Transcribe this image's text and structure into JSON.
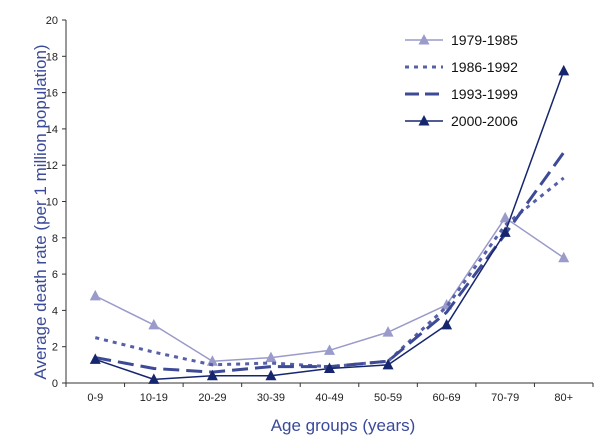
{
  "chart_data": {
    "type": "line",
    "title": "",
    "xlabel": "Age groups (years)",
    "ylabel": "Average death rate  (per 1 million population)",
    "categories": [
      "0-9",
      "10-19",
      "20-29",
      "30-39",
      "40-49",
      "50-59",
      "60-69",
      "70-79",
      "80+"
    ],
    "ylim": [
      0,
      20
    ],
    "yticks": [
      "0",
      "2",
      "4",
      "6",
      "8",
      "10",
      "12",
      "14",
      "16",
      "18",
      "20"
    ],
    "grid": false,
    "legend_position": "top-right",
    "series": [
      {
        "name": "1979-1985",
        "values": [
          4.8,
          3.2,
          1.2,
          1.4,
          1.8,
          2.8,
          4.3,
          9.1,
          6.9
        ],
        "color": "#9a9acb",
        "style": "solid",
        "marker": "triangle"
      },
      {
        "name": "1986-1992",
        "values": [
          2.5,
          1.7,
          1.0,
          1.1,
          0.9,
          1.2,
          4.2,
          8.7,
          11.3
        ],
        "color": "#5560a8",
        "style": "dotted",
        "marker": "none"
      },
      {
        "name": "1993-1999",
        "values": [
          1.4,
          0.8,
          0.6,
          0.9,
          0.9,
          1.2,
          3.9,
          8.2,
          12.7
        ],
        "color": "#3d4a96",
        "style": "dashed",
        "marker": "none"
      },
      {
        "name": "2000-2006",
        "values": [
          1.3,
          0.2,
          0.4,
          0.4,
          0.8,
          1.0,
          3.2,
          8.3,
          17.2
        ],
        "color": "#16266e",
        "style": "solid",
        "marker": "triangle"
      }
    ]
  }
}
